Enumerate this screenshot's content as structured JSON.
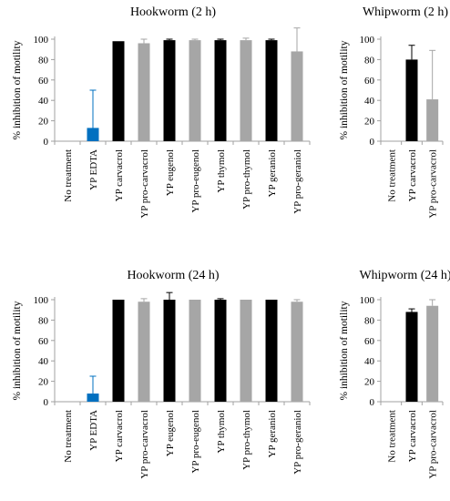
{
  "colors": {
    "black": "#000000",
    "gray": "#a6a6a6",
    "blue": "#0070c0"
  },
  "chart_data": [
    {
      "type": "bar",
      "title": "Hookworm (2 h)",
      "ylabel": "% inhibition of motility",
      "ylim": [
        0,
        100
      ],
      "yticks": [
        "0",
        "20",
        "40",
        "60",
        "80",
        "100"
      ],
      "categories": [
        "No treatment",
        "YP EDTA",
        "YP carvacrol",
        "YP pro-carvacrol",
        "YP eugenol",
        "YP pro-eugenol",
        "YP thymol",
        "YP pro-thymol",
        "YP geraniol",
        "YP pro-geraniol"
      ],
      "values": [
        0,
        13,
        98,
        96,
        99,
        99,
        99,
        99,
        99,
        88
      ],
      "errors": [
        0,
        37,
        0,
        4,
        1,
        1,
        1,
        2,
        1,
        23
      ],
      "bar_colors": [
        "gray",
        "blue",
        "black",
        "gray",
        "black",
        "gray",
        "black",
        "gray",
        "black",
        "gray"
      ]
    },
    {
      "type": "bar",
      "title": "Whipworm (2 h)",
      "ylabel": "% inhibition of motility",
      "ylim": [
        0,
        100
      ],
      "yticks": [
        "0",
        "20",
        "40",
        "60",
        "80",
        "100"
      ],
      "categories": [
        "No treatment",
        "YP carvacrol",
        "YP pro-carvacrol"
      ],
      "values": [
        0,
        80,
        41
      ],
      "errors": [
        0,
        14,
        48
      ],
      "bar_colors": [
        "gray",
        "black",
        "gray"
      ]
    },
    {
      "type": "bar",
      "title": "Hookworm (24 h)",
      "ylabel": "% inhibition of motility",
      "ylim": [
        0,
        100
      ],
      "yticks": [
        "0",
        "20",
        "40",
        "60",
        "80",
        "100"
      ],
      "categories": [
        "No treatment",
        "YP EDTA",
        "YP carvacrol",
        "YP pro-carvacrol",
        "YP eugenol",
        "YP pro-eugenol",
        "YP thymol",
        "YP pro-thymol",
        "YP geraniol",
        "YP pro-geraniol"
      ],
      "values": [
        0,
        8,
        100,
        98,
        100,
        100,
        100,
        100,
        100,
        98
      ],
      "errors": [
        0,
        17,
        0,
        3,
        7,
        0,
        1,
        0,
        0,
        2
      ],
      "bar_colors": [
        "gray",
        "blue",
        "black",
        "gray",
        "black",
        "gray",
        "black",
        "gray",
        "black",
        "gray"
      ]
    },
    {
      "type": "bar",
      "title": "Whipworm (24 h)",
      "ylabel": "% inhibition of motility",
      "ylim": [
        0,
        100
      ],
      "yticks": [
        "0",
        "20",
        "40",
        "60",
        "80",
        "100"
      ],
      "categories": [
        "No treatment",
        "YP carvacrol",
        "YP pro-carvacrol"
      ],
      "values": [
        0,
        88,
        94
      ],
      "errors": [
        0,
        3,
        6
      ],
      "bar_colors": [
        "gray",
        "black",
        "gray"
      ]
    }
  ]
}
